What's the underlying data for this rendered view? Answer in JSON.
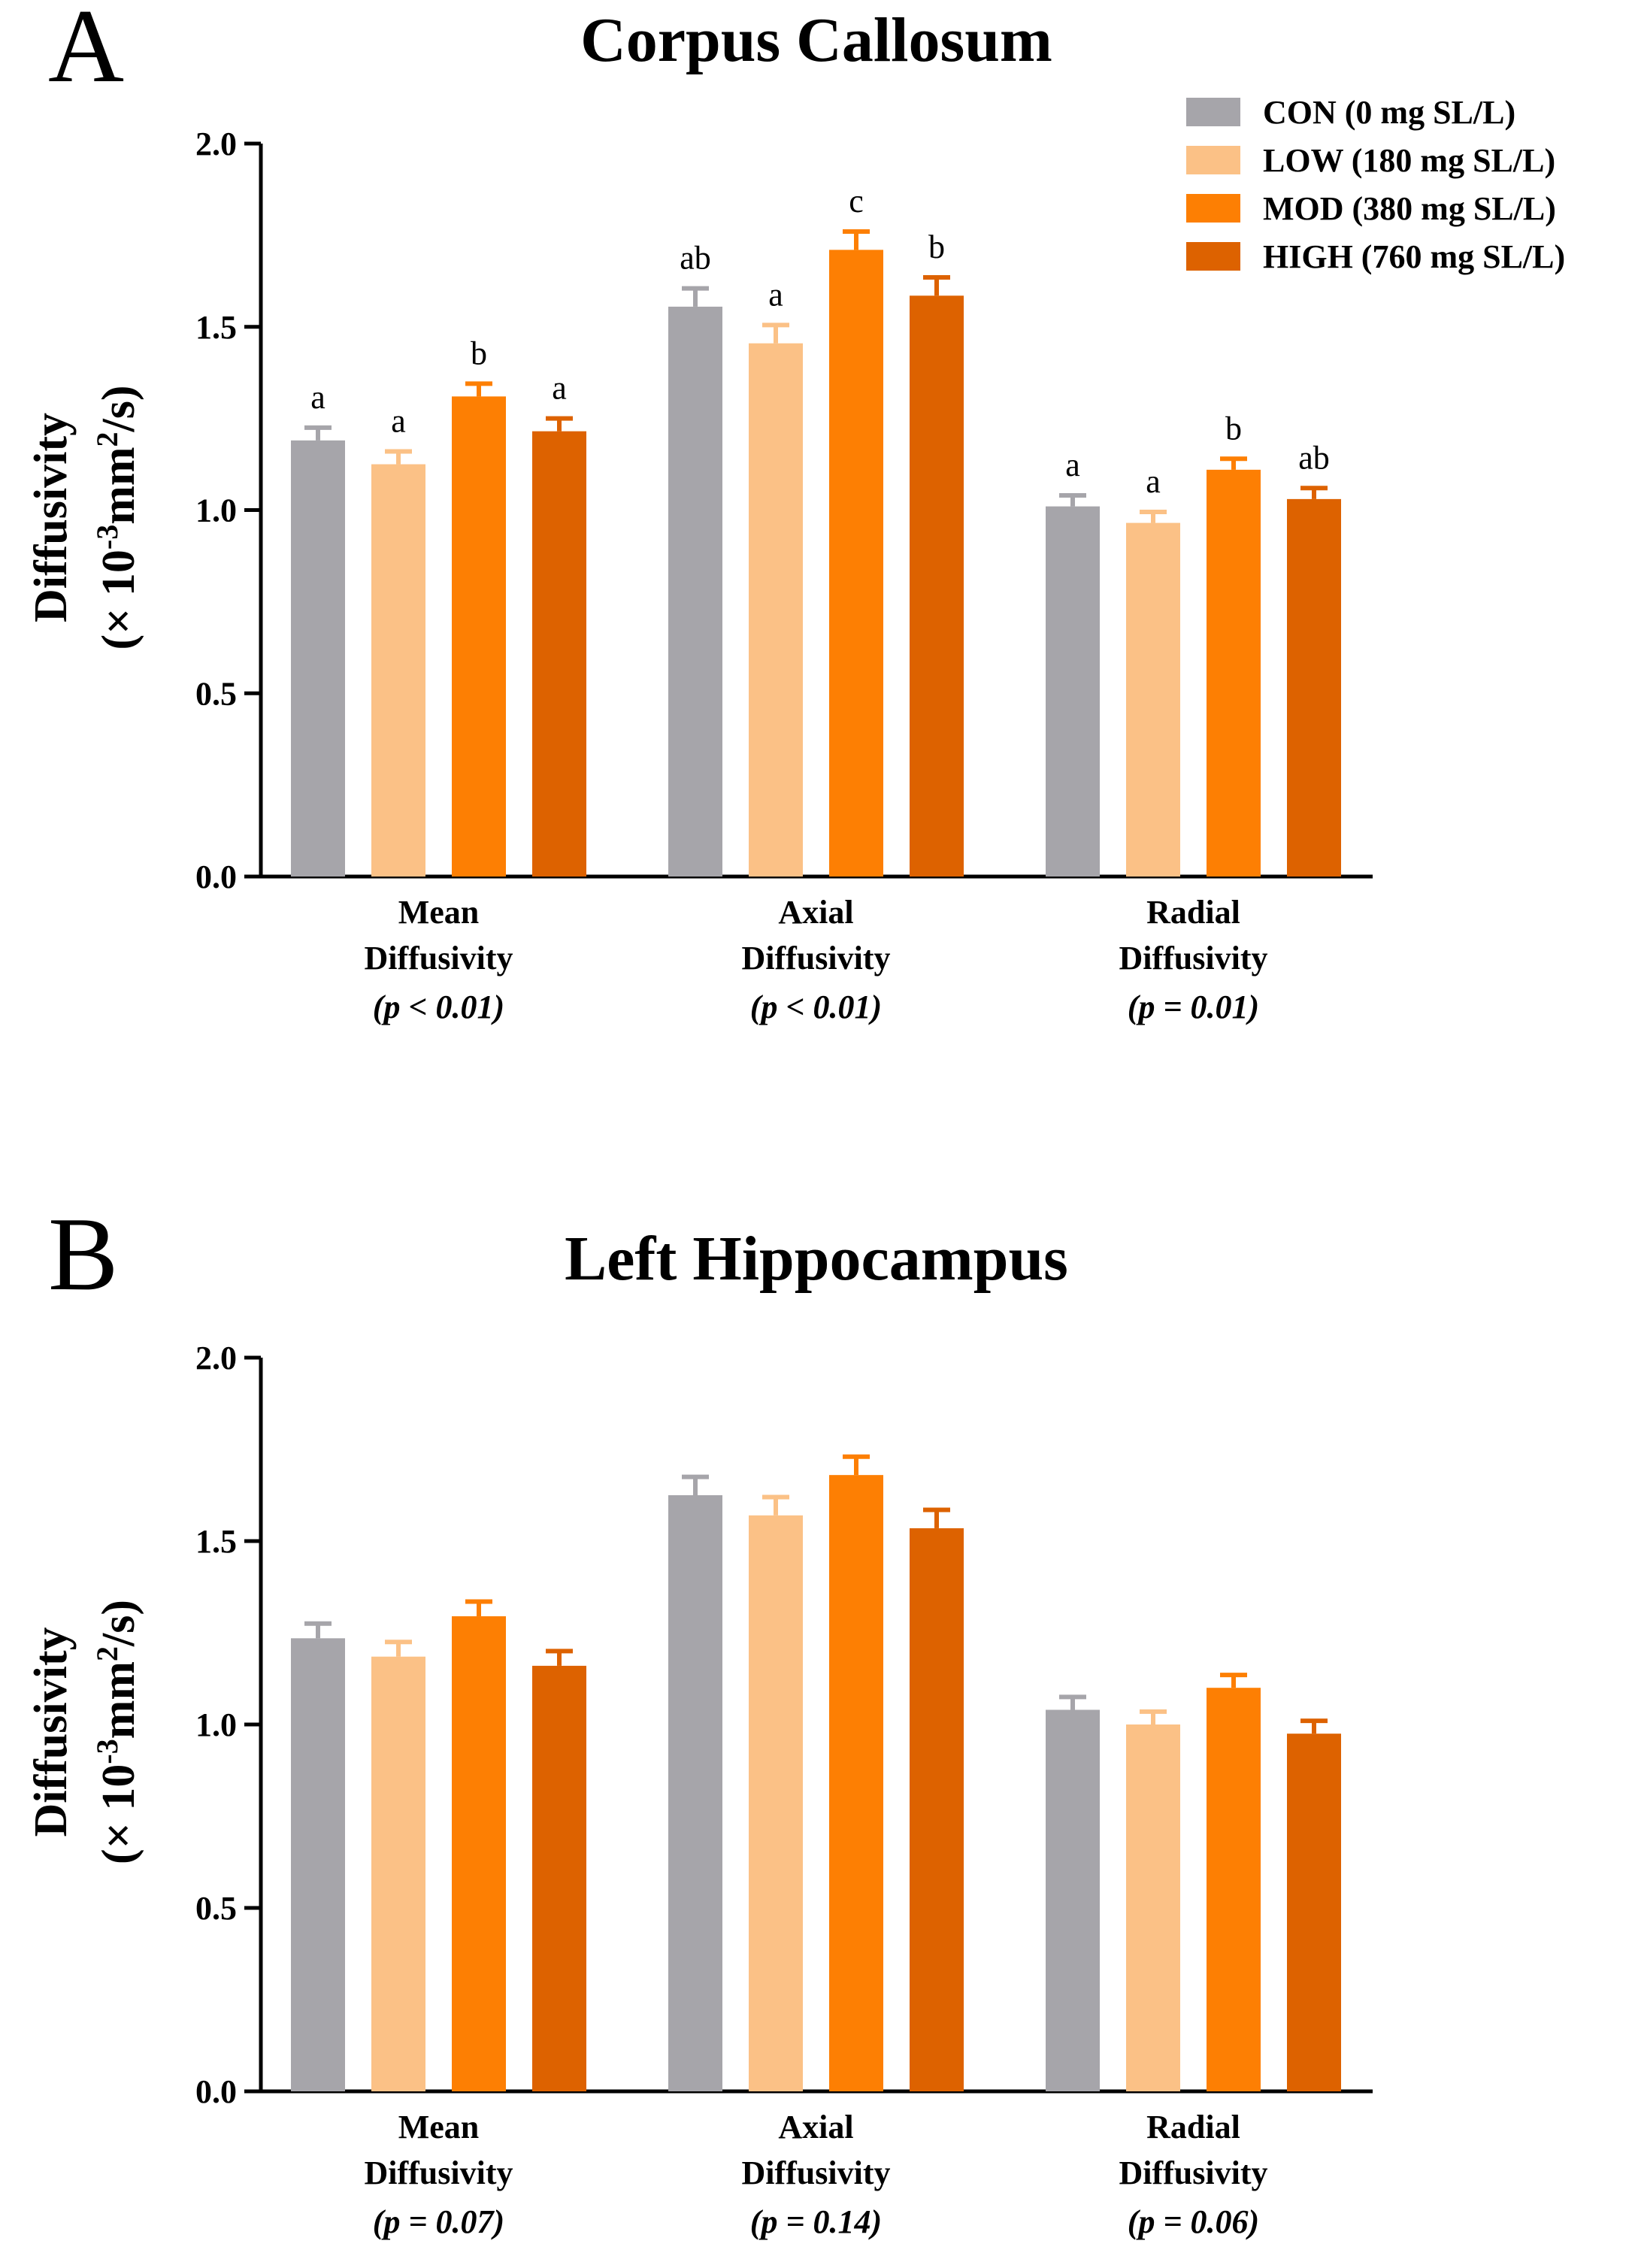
{
  "chart_data": [
    {
      "panel": "A",
      "type": "bar",
      "title": "Corpus Callosum",
      "ylabel_line1": "Diffusivity",
      "ylabel_line2": "(× 10-3mm2/s)",
      "ylabel_parts": {
        "prefix": "(× 10",
        "sup1": "-3",
        "mid": "mm",
        "sup2": "2",
        "suffix": "/s)"
      },
      "ylim": [
        0,
        2.0
      ],
      "yticks": [
        "0.0",
        "0.5",
        "1.0",
        "1.5",
        "2.0"
      ],
      "categories": [
        {
          "line1": "Mean",
          "line2": "Diffusivity",
          "pvalue": "(p < 0.01)"
        },
        {
          "line1": "Axial",
          "line2": "Diffusivity",
          "pvalue": "(p < 0.01)"
        },
        {
          "line1": "Radial",
          "line2": "Diffusivity",
          "pvalue": "(p = 0.01)"
        }
      ],
      "series": [
        {
          "name": "CON (0 mg SL/L)",
          "color": "#a6a5aa",
          "values": [
            1.19,
            1.555,
            1.01
          ],
          "errors": [
            0.035,
            0.05,
            0.03
          ],
          "letters": [
            "a",
            "ab",
            "a"
          ]
        },
        {
          "name": "LOW (180 mg SL/L)",
          "color": "#fbc186",
          "values": [
            1.125,
            1.455,
            0.965
          ],
          "errors": [
            0.035,
            0.05,
            0.03
          ],
          "letters": [
            "a",
            "a",
            "a"
          ]
        },
        {
          "name": "MOD (380 mg SL/L)",
          "color": "#fd7f03",
          "values": [
            1.31,
            1.71,
            1.11
          ],
          "errors": [
            0.035,
            0.05,
            0.03
          ],
          "letters": [
            "b",
            "c",
            "b"
          ]
        },
        {
          "name": "HIGH (760 mg SL/L)",
          "color": "#dd6200",
          "values": [
            1.215,
            1.585,
            1.03
          ],
          "errors": [
            0.035,
            0.05,
            0.03
          ],
          "letters": [
            "a",
            "b",
            "ab"
          ]
        }
      ],
      "legend_position": "top-right"
    },
    {
      "panel": "B",
      "type": "bar",
      "title": "Left Hippocampus",
      "ylabel_line1": "Diffusivity",
      "ylabel_line2": "(× 10-3mm2/s)",
      "ylabel_parts": {
        "prefix": "(× 10",
        "sup1": "-3",
        "mid": "mm",
        "sup2": "2",
        "suffix": "/s)"
      },
      "ylim": [
        0,
        2.0
      ],
      "yticks": [
        "0.0",
        "0.5",
        "1.0",
        "1.5",
        "2.0"
      ],
      "categories": [
        {
          "line1": "Mean",
          "line2": "Diffusivity",
          "pvalue": "(p = 0.07)"
        },
        {
          "line1": "Axial",
          "line2": "Diffusivity",
          "pvalue": "(p = 0.14)"
        },
        {
          "line1": "Radial",
          "line2": "Diffusivity",
          "pvalue": "(p = 0.06)"
        }
      ],
      "series": [
        {
          "name": "CON (0 mg SL/L)",
          "color": "#a6a5aa",
          "values": [
            1.235,
            1.625,
            1.04
          ],
          "errors": [
            0.04,
            0.05,
            0.035
          ],
          "letters": []
        },
        {
          "name": "LOW (180 mg SL/L)",
          "color": "#fbc186",
          "values": [
            1.185,
            1.57,
            1.0
          ],
          "errors": [
            0.04,
            0.05,
            0.035
          ],
          "letters": []
        },
        {
          "name": "MOD (380 mg SL/L)",
          "color": "#fd7f03",
          "values": [
            1.295,
            1.68,
            1.1
          ],
          "errors": [
            0.04,
            0.05,
            0.035
          ],
          "letters": []
        },
        {
          "name": "HIGH (760 mg SL/L)",
          "color": "#dd6200",
          "values": [
            1.16,
            1.535,
            0.975
          ],
          "errors": [
            0.04,
            0.05,
            0.035
          ],
          "letters": []
        }
      ],
      "legend_position": "none"
    }
  ]
}
